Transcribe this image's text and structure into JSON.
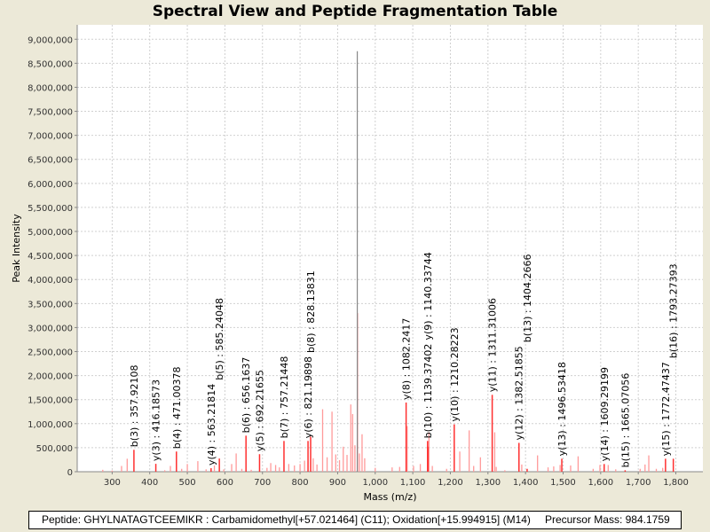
{
  "chart_data": {
    "type": "bar",
    "title": "Spectral View and Peptide Fragmentation Table",
    "xlabel": "Mass (m/z)",
    "ylabel": "Peak Intensity",
    "xlim": [
      207,
      1872
    ],
    "ylim": [
      0,
      9300000
    ],
    "xticks": [
      300,
      400,
      500,
      600,
      700,
      800,
      900,
      1000,
      1100,
      1200,
      1300,
      1400,
      1500,
      1600,
      1700,
      1800
    ],
    "xtick_labels": [
      "300",
      "400",
      "500",
      "600",
      "700",
      "800",
      "900",
      "1,000",
      "1,100",
      "1,200",
      "1,300",
      "1,400",
      "1,500",
      "1,600",
      "1,700",
      "1,800"
    ],
    "yticks": [
      0,
      500000,
      1000000,
      1500000,
      2000000,
      2500000,
      3000000,
      3500000,
      4000000,
      4500000,
      5000000,
      5500000,
      6000000,
      6500000,
      7000000,
      7500000,
      8000000,
      8500000,
      9000000
    ],
    "ytick_labels": [
      "0",
      "500,000",
      "1,000,000",
      "1,500,000",
      "2,000,000",
      "2,500,000",
      "3,000,000",
      "3,500,000",
      "4,000,000",
      "4,500,000",
      "5,000,000",
      "5,500,000",
      "6,000,000",
      "6,500,000",
      "7,000,000",
      "7,500,000",
      "8,000,000",
      "8,500,000",
      "9,000,000"
    ],
    "grid": true,
    "precursor_peak": {
      "mz": 952.3,
      "intensity": 8750000
    },
    "annotated_peaks": [
      {
        "mz": 357.92,
        "intensity": 456000,
        "label": "b(3) : 357.92108"
      },
      {
        "mz": 416.19,
        "intensity": 164000,
        "label": "y(3) : 416.18573"
      },
      {
        "mz": 471.0,
        "intensity": 420000,
        "label": "b(4) : 471.00378"
      },
      {
        "mz": 563.22,
        "intensity": 73000,
        "label": "y(4) : 563.21814"
      },
      {
        "mz": 585.24,
        "intensity": 274000,
        "label": "b(5) : 585.24048"
      },
      {
        "mz": 656.16,
        "intensity": 750000,
        "label": "b(6) : 656.1637"
      },
      {
        "mz": 692.22,
        "intensity": 365000,
        "label": "y(5) : 692.21655"
      },
      {
        "mz": 757.21,
        "intensity": 640000,
        "label": "b(7) : 757.21448"
      },
      {
        "mz": 821.2,
        "intensity": 640000,
        "label": "y(6) : 821.19898"
      },
      {
        "mz": 828.14,
        "intensity": 730000,
        "label": "b(8) : 828.13831"
      },
      {
        "mz": 1082.24,
        "intensity": 1440000,
        "label": "y(8) : 1082.2417"
      },
      {
        "mz": 1139.37,
        "intensity": 640000,
        "label": "b(10) : 1139.37402"
      },
      {
        "mz": 1140.34,
        "intensity": 520000,
        "label": "y(9) : 1140.33744"
      },
      {
        "mz": 1210.28,
        "intensity": 985000,
        "label": "y(10) : 1210.28223"
      },
      {
        "mz": 1311.31,
        "intensity": 1600000,
        "label": "y(11) : 1311.31006"
      },
      {
        "mz": 1382.52,
        "intensity": 600000,
        "label": "y(12) : 1382.51855"
      },
      {
        "mz": 1404.27,
        "intensity": 60000,
        "label": "b(13) : 1404.2666"
      },
      {
        "mz": 1496.53,
        "intensity": 270000,
        "label": "y(13) : 1496.53418"
      },
      {
        "mz": 1609.29,
        "intensity": 160000,
        "label": "y(14) : 1609.29199"
      },
      {
        "mz": 1665.07,
        "intensity": 30000,
        "label": "b(15) : 1665.07056"
      },
      {
        "mz": 1772.47,
        "intensity": 270000,
        "label": "y(15) : 1772.47437"
      },
      {
        "mz": 1793.27,
        "intensity": 270000,
        "label": "b(16) : 1793.27393"
      }
    ],
    "unannotated_peaks": [
      [
        275,
        40000
      ],
      [
        300,
        25000
      ],
      [
        325,
        120000
      ],
      [
        340,
        270000
      ],
      [
        440,
        30000
      ],
      [
        455,
        120000
      ],
      [
        485,
        60000
      ],
      [
        500,
        160000
      ],
      [
        528,
        220000
      ],
      [
        550,
        50000
      ],
      [
        572,
        130000
      ],
      [
        597,
        50000
      ],
      [
        618,
        160000
      ],
      [
        630,
        380000
      ],
      [
        645,
        60000
      ],
      [
        670,
        40000
      ],
      [
        712,
        80000
      ],
      [
        722,
        180000
      ],
      [
        735,
        140000
      ],
      [
        745,
        90000
      ],
      [
        770,
        160000
      ],
      [
        785,
        130000
      ],
      [
        800,
        160000
      ],
      [
        812,
        230000
      ],
      [
        835,
        280000
      ],
      [
        845,
        150000
      ],
      [
        860,
        1300000
      ],
      [
        872,
        300000
      ],
      [
        885,
        1250000
      ],
      [
        895,
        360000
      ],
      [
        905,
        240000
      ],
      [
        915,
        520000
      ],
      [
        925,
        350000
      ],
      [
        935,
        1400000
      ],
      [
        940,
        1200000
      ],
      [
        946,
        550000
      ],
      [
        953,
        3300000
      ],
      [
        958,
        380000
      ],
      [
        965,
        780000
      ],
      [
        972,
        280000
      ],
      [
        1000,
        80000
      ],
      [
        1045,
        90000
      ],
      [
        1065,
        100000
      ],
      [
        1085,
        950000
      ],
      [
        1102,
        120000
      ],
      [
        1120,
        160000
      ],
      [
        1143,
        820000
      ],
      [
        1152,
        120000
      ],
      [
        1190,
        60000
      ],
      [
        1225,
        420000
      ],
      [
        1250,
        860000
      ],
      [
        1262,
        120000
      ],
      [
        1280,
        300000
      ],
      [
        1318,
        820000
      ],
      [
        1322,
        100000
      ],
      [
        1345,
        30000
      ],
      [
        1390,
        150000
      ],
      [
        1432,
        340000
      ],
      [
        1460,
        90000
      ],
      [
        1475,
        110000
      ],
      [
        1492,
        140000
      ],
      [
        1520,
        130000
      ],
      [
        1540,
        320000
      ],
      [
        1580,
        60000
      ],
      [
        1598,
        140000
      ],
      [
        1620,
        140000
      ],
      [
        1640,
        50000
      ],
      [
        1705,
        60000
      ],
      [
        1718,
        150000
      ],
      [
        1728,
        340000
      ],
      [
        1748,
        60000
      ],
      [
        1765,
        80000
      ]
    ]
  },
  "footer": {
    "peptide": "Peptide: GHYLNATAGTCEEMIKR : Carbamidomethyl[+57.021464] (C11); Oxidation[+15.994915] (M14)",
    "precursor": "Precursor Mass: 984.1759"
  }
}
